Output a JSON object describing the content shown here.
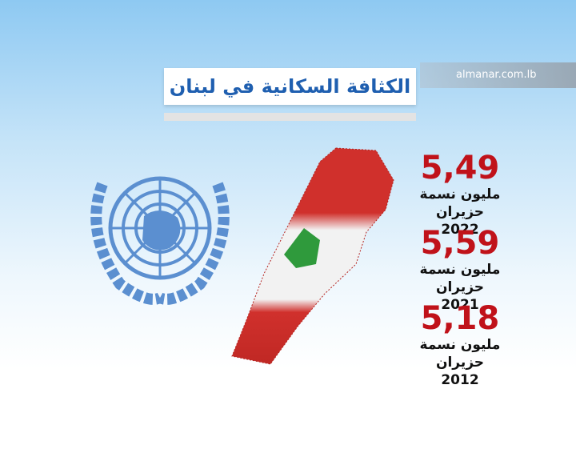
{
  "header": {
    "title": "الكثافة السكانية في لبنان"
  },
  "logo": {
    "text": "almanar.com.lb"
  },
  "stats": [
    {
      "value": "5,49",
      "unit": "مليون نسمة",
      "date": "حزيران 2022"
    },
    {
      "value": "5,59",
      "unit": "مليون نسمة",
      "date": "حزيران 2021"
    },
    {
      "value": "5,18",
      "unit": "مليون نسمة",
      "date": "حزيران 2012"
    }
  ]
}
